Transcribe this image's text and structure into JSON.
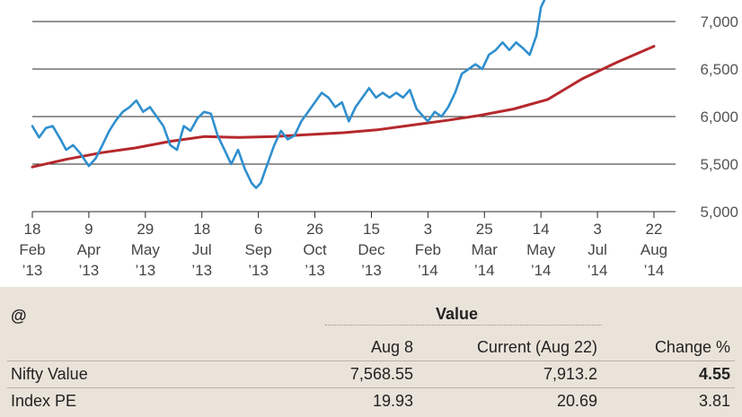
{
  "chart_data": {
    "type": "line",
    "y_ticks": [
      "5,000",
      "5,500",
      "6,000",
      "6,500",
      "7,000"
    ],
    "y_tick_values": [
      5000,
      5500,
      6000,
      6500,
      7000
    ],
    "ylim": [
      5000,
      7250
    ],
    "grid": true,
    "x_ticks": [
      {
        "day": "18",
        "mon": "Feb",
        "yr": "’13",
        "date": "2013-02-18"
      },
      {
        "day": "9",
        "mon": "Apr",
        "yr": "’13",
        "date": "2013-04-09"
      },
      {
        "day": "29",
        "mon": "May",
        "yr": "’13",
        "date": "2013-05-29"
      },
      {
        "day": "18",
        "mon": "Jul",
        "yr": "’13",
        "date": "2013-07-18"
      },
      {
        "day": "6",
        "mon": "Sep",
        "yr": "’13",
        "date": "2013-09-06"
      },
      {
        "day": "26",
        "mon": "Oct",
        "yr": "’13",
        "date": "2013-10-26"
      },
      {
        "day": "15",
        "mon": "Dec",
        "yr": "’13",
        "date": "2013-12-15"
      },
      {
        "day": "3",
        "mon": "Feb",
        "yr": "’14",
        "date": "2014-02-03"
      },
      {
        "day": "25",
        "mon": "Mar",
        "yr": "’14",
        "date": "2014-03-25"
      },
      {
        "day": "14",
        "mon": "May",
        "yr": "’14",
        "date": "2014-05-14"
      },
      {
        "day": "3",
        "mon": "Jul",
        "yr": "’14",
        "date": "2014-07-03"
      },
      {
        "day": "22",
        "mon": "Aug",
        "yr": "’14",
        "date": "2014-08-22"
      }
    ],
    "series": [
      {
        "color": "#2f8fce",
        "points": [
          [
            "2013-02-18",
            5900
          ],
          [
            "2013-02-24",
            5780
          ],
          [
            "2013-03-02",
            5880
          ],
          [
            "2013-03-08",
            5900
          ],
          [
            "2013-03-14",
            5780
          ],
          [
            "2013-03-20",
            5650
          ],
          [
            "2013-03-26",
            5700
          ],
          [
            "2013-04-01",
            5620
          ],
          [
            "2013-04-05",
            5550
          ],
          [
            "2013-04-09",
            5480
          ],
          [
            "2013-04-15",
            5560
          ],
          [
            "2013-04-21",
            5700
          ],
          [
            "2013-04-27",
            5850
          ],
          [
            "2013-05-03",
            5960
          ],
          [
            "2013-05-09",
            6050
          ],
          [
            "2013-05-15",
            6100
          ],
          [
            "2013-05-21",
            6170
          ],
          [
            "2013-05-27",
            6050
          ],
          [
            "2013-06-02",
            6100
          ],
          [
            "2013-06-08",
            6000
          ],
          [
            "2013-06-14",
            5900
          ],
          [
            "2013-06-20",
            5700
          ],
          [
            "2013-06-26",
            5650
          ],
          [
            "2013-07-02",
            5900
          ],
          [
            "2013-07-08",
            5850
          ],
          [
            "2013-07-14",
            5980
          ],
          [
            "2013-07-20",
            6050
          ],
          [
            "2013-07-26",
            6030
          ],
          [
            "2013-08-01",
            5800
          ],
          [
            "2013-08-07",
            5650
          ],
          [
            "2013-08-13",
            5500
          ],
          [
            "2013-08-19",
            5650
          ],
          [
            "2013-08-25",
            5450
          ],
          [
            "2013-08-31",
            5300
          ],
          [
            "2013-09-04",
            5250
          ],
          [
            "2013-09-08",
            5300
          ],
          [
            "2013-09-14",
            5500
          ],
          [
            "2013-09-20",
            5700
          ],
          [
            "2013-09-26",
            5850
          ],
          [
            "2013-10-02",
            5760
          ],
          [
            "2013-10-08",
            5800
          ],
          [
            "2013-10-14",
            5950
          ],
          [
            "2013-10-20",
            6050
          ],
          [
            "2013-10-26",
            6150
          ],
          [
            "2013-11-01",
            6250
          ],
          [
            "2013-11-07",
            6200
          ],
          [
            "2013-11-13",
            6100
          ],
          [
            "2013-11-19",
            6150
          ],
          [
            "2013-11-25",
            5950
          ],
          [
            "2013-12-01",
            6100
          ],
          [
            "2013-12-07",
            6200
          ],
          [
            "2013-12-13",
            6300
          ],
          [
            "2013-12-19",
            6200
          ],
          [
            "2013-12-25",
            6250
          ],
          [
            "2013-12-31",
            6200
          ],
          [
            "2014-01-06",
            6250
          ],
          [
            "2014-01-12",
            6200
          ],
          [
            "2014-01-18",
            6280
          ],
          [
            "2014-01-24",
            6080
          ],
          [
            "2014-01-30",
            6000
          ],
          [
            "2014-02-03",
            5950
          ],
          [
            "2014-02-09",
            6050
          ],
          [
            "2014-02-15",
            6000
          ],
          [
            "2014-02-21",
            6100
          ],
          [
            "2014-02-27",
            6250
          ],
          [
            "2014-03-05",
            6450
          ],
          [
            "2014-03-11",
            6500
          ],
          [
            "2014-03-17",
            6550
          ],
          [
            "2014-03-23",
            6500
          ],
          [
            "2014-03-29",
            6650
          ],
          [
            "2014-04-04",
            6700
          ],
          [
            "2014-04-10",
            6780
          ],
          [
            "2014-04-16",
            6700
          ],
          [
            "2014-04-22",
            6780
          ],
          [
            "2014-04-28",
            6720
          ],
          [
            "2014-05-04",
            6650
          ],
          [
            "2014-05-10",
            6850
          ],
          [
            "2014-05-14",
            7150
          ],
          [
            "2014-05-18",
            7250
          ]
        ]
      },
      {
        "color": "#b5282c",
        "points": [
          [
            "2013-02-18",
            5470
          ],
          [
            "2013-03-20",
            5550
          ],
          [
            "2013-04-20",
            5620
          ],
          [
            "2013-05-20",
            5670
          ],
          [
            "2013-06-20",
            5740
          ],
          [
            "2013-07-20",
            5790
          ],
          [
            "2013-08-20",
            5780
          ],
          [
            "2013-09-20",
            5790
          ],
          [
            "2013-10-20",
            5810
          ],
          [
            "2013-11-20",
            5830
          ],
          [
            "2013-12-20",
            5860
          ],
          [
            "2014-01-20",
            5910
          ],
          [
            "2014-02-20",
            5960
          ],
          [
            "2014-03-20",
            6010
          ],
          [
            "2014-04-20",
            6080
          ],
          [
            "2014-05-20",
            6180
          ],
          [
            "2014-06-20",
            6400
          ],
          [
            "2014-07-20",
            6570
          ],
          [
            "2014-08-22",
            6740
          ]
        ]
      }
    ]
  },
  "table": {
    "corner": "@",
    "group_header": "Value",
    "columns": [
      "Aug 8",
      "Current (Aug 22)",
      "Change %"
    ],
    "rows": [
      {
        "label": "Nifty Value",
        "aug8": "7,568.55",
        "current": "7,913.2",
        "change": "4.55",
        "change_bold": true
      },
      {
        "label": "Index PE",
        "aug8": "19.93",
        "current": "20.69",
        "change": "3.81",
        "change_bold": false
      }
    ]
  }
}
